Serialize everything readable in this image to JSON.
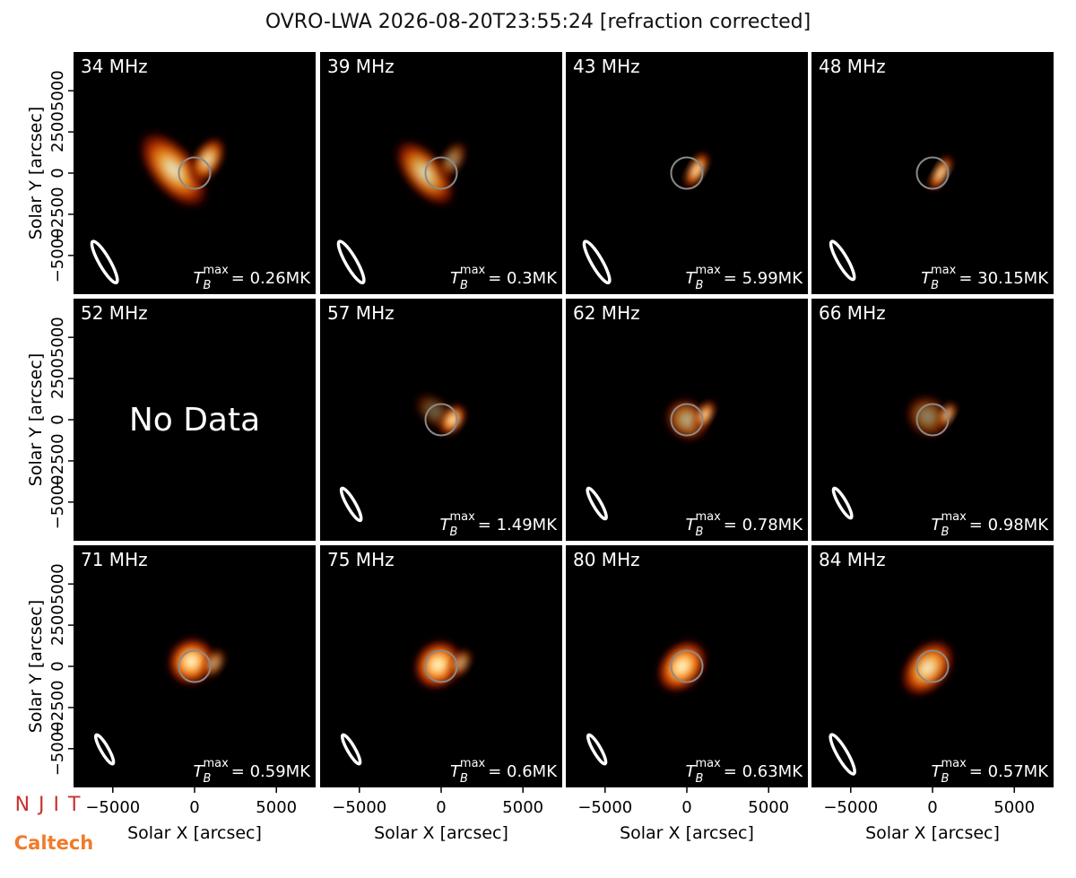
{
  "title": "OVRO-LWA 2026-08-20T23:55:24 [refraction corrected]",
  "logos": [
    "NJIT",
    "Caltech"
  ],
  "tb_symbol": {
    "base": "T",
    "sub": "B",
    "sup": "max"
  },
  "no_data": "No Data",
  "x_label": "Solar X [arcsec]",
  "y_label": "Solar Y [arcsec]",
  "xlim": [
    -7400,
    7400
  ],
  "ylim": [
    -7350,
    7350
  ],
  "xticks": [
    {
      "value": -5000,
      "label": "−5000"
    },
    0,
    5000
  ],
  "yticks": [
    {
      "value": -5000,
      "label": "−5000"
    },
    {
      "value": -2500,
      "label": "−2500"
    },
    0,
    2500,
    5000
  ],
  "chart_data": [
    {
      "type": "image",
      "title": "34 MHz",
      "tmax_label": "= 0.26MK"
    },
    {
      "type": "image",
      "title": "39 MHz",
      "tmax_label": "= 0.3MK"
    },
    {
      "type": "image",
      "title": "43 MHz",
      "tmax_label": "= 5.99MK"
    },
    {
      "type": "image",
      "title": "48 MHz",
      "tmax_label": "= 30.15MK"
    },
    {
      "type": "empty",
      "title": "52 MHz"
    },
    {
      "type": "image",
      "title": "57 MHz",
      "tmax_label": "= 1.49MK"
    },
    {
      "type": "image",
      "title": "62 MHz",
      "tmax_label": "= 0.78MK"
    },
    {
      "type": "image",
      "title": "66 MHz",
      "tmax_label": "= 0.98MK"
    },
    {
      "type": "image",
      "title": "71 MHz",
      "tmax_label": "= 0.59MK"
    },
    {
      "type": "image",
      "title": "75 MHz",
      "tmax_label": "= 0.6MK"
    },
    {
      "type": "image",
      "title": "80 MHz",
      "tmax_label": "= 0.63MK"
    },
    {
      "type": "image",
      "title": "84 MHz",
      "tmax_label": "= 0.57MK"
    }
  ]
}
